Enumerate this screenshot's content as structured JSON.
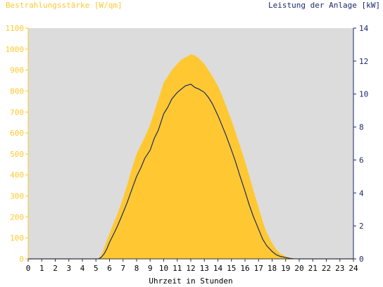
{
  "chart_data": {
    "type": "area",
    "left_axis_title": "Bestrahlungsstärke [W/qm]",
    "right_axis_title": "Leistung der Anlage [kW]",
    "xlabel": "Uhrzeit in Stunden",
    "x_ticks": [
      "0",
      "1",
      "2",
      "3",
      "4",
      "5",
      "6",
      "7",
      "8",
      "9",
      "10",
      "11",
      "12",
      "13",
      "14",
      "15",
      "16",
      "17",
      "18",
      "19",
      "20",
      "21",
      "22",
      "23",
      "24"
    ],
    "y_left_ticks": [
      "0",
      "100",
      "200",
      "300",
      "400",
      "500",
      "600",
      "700",
      "800",
      "900",
      "1000",
      "1100"
    ],
    "y_right_ticks": [
      "0",
      "2",
      "4",
      "6",
      "8",
      "10",
      "12",
      "14"
    ],
    "xlim": [
      0,
      24
    ],
    "ylim_left": [
      0,
      1100
    ],
    "ylim_right": [
      0,
      14
    ],
    "grid": false,
    "colors": {
      "plot_background": "#dcdcdc",
      "irradiance": "#ffc832",
      "power": "#1a2a6c",
      "left_axis": "#ffc832",
      "right_axis": "#1a2a6c",
      "x_axis_text": "#000000"
    },
    "series": [
      {
        "name": "Bestrahlungsstärke [W/qm]",
        "axis": "left",
        "style": "area",
        "x": [
          0,
          5.1,
          5.3,
          5.5,
          5.7,
          6.0,
          6.3,
          6.6,
          7.0,
          7.3,
          7.6,
          8.0,
          8.3,
          8.6,
          9.0,
          9.3,
          9.6,
          10.0,
          10.3,
          10.6,
          11.0,
          11.3,
          11.6,
          12.0,
          12.3,
          12.6,
          13.0,
          13.3,
          13.6,
          14.0,
          14.3,
          14.6,
          15.0,
          15.3,
          15.6,
          16.0,
          16.3,
          16.6,
          17.0,
          17.3,
          17.6,
          18.0,
          18.3,
          18.6,
          19.0,
          19.3,
          19.6,
          20.0,
          20.2,
          24
        ],
        "y": [
          0,
          0,
          10,
          35,
          70,
          120,
          170,
          215,
          290,
          350,
          420,
          500,
          540,
          580,
          640,
          700,
          760,
          840,
          870,
          900,
          930,
          950,
          960,
          975,
          970,
          955,
          930,
          900,
          870,
          825,
          780,
          730,
          660,
          605,
          545,
          465,
          400,
          330,
          245,
          180,
          125,
          75,
          45,
          25,
          12,
          6,
          3,
          1,
          0,
          0
        ]
      },
      {
        "name": "Leistung der Anlage [kW]",
        "axis": "right",
        "style": "line",
        "x": [
          0,
          5.2,
          5.4,
          5.6,
          5.8,
          6.0,
          6.3,
          6.6,
          7.0,
          7.3,
          7.6,
          8.0,
          8.3,
          8.6,
          9.0,
          9.3,
          9.6,
          10.0,
          10.3,
          10.6,
          11.0,
          11.3,
          11.6,
          12.0,
          12.3,
          12.6,
          13.0,
          13.3,
          13.6,
          14.0,
          14.3,
          14.6,
          15.0,
          15.3,
          15.6,
          16.0,
          16.3,
          16.6,
          17.0,
          17.3,
          17.6,
          18.0,
          18.3,
          18.6,
          19.0,
          19.3,
          19.6,
          20.0,
          24
        ],
        "y": [
          0,
          0,
          0.1,
          0.3,
          0.6,
          1.0,
          1.5,
          2.0,
          2.8,
          3.4,
          4.1,
          5.0,
          5.5,
          6.1,
          6.6,
          7.3,
          7.8,
          8.8,
          9.2,
          9.7,
          10.1,
          10.3,
          10.5,
          10.6,
          10.4,
          10.3,
          10.1,
          9.8,
          9.4,
          8.7,
          8.1,
          7.5,
          6.6,
          5.9,
          5.1,
          4.1,
          3.3,
          2.6,
          1.8,
          1.2,
          0.8,
          0.45,
          0.25,
          0.15,
          0.08,
          0.03,
          0.01,
          0,
          0
        ]
      }
    ]
  }
}
